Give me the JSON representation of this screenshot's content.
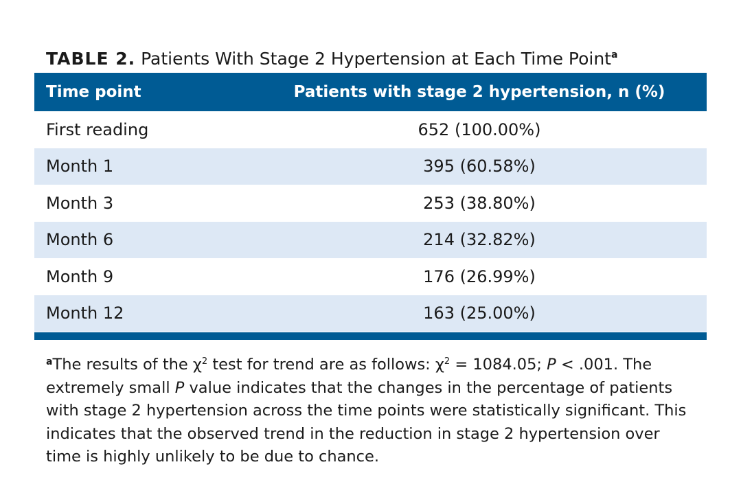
{
  "title": {
    "label": "TABLE 2.",
    "text": "Patients With Stage 2 Hypertension at Each Time Point",
    "footnote_mark": "a"
  },
  "table": {
    "headers": [
      "Time point",
      "Patients with stage 2 hypertension, n (%)"
    ],
    "rows": [
      [
        "First reading",
        "652 (100.00%)"
      ],
      [
        "Month 1",
        "395 (60.58%)"
      ],
      [
        "Month 3",
        "253 (38.80%)"
      ],
      [
        "Month 6",
        "214 (32.82%)"
      ],
      [
        "Month 9",
        "176 (26.99%)"
      ],
      [
        "Month 12",
        "163 (25.00%)"
      ]
    ]
  },
  "footnote": {
    "mark": "a",
    "part1": "The results of the χ",
    "sup1": "2",
    "part2": " test for trend are as follows: χ",
    "sup2": "2",
    "part3": " = 1084.05; ",
    "p1": "P",
    "part4": " < .001. The extremely small ",
    "p2": "P",
    "part5": " value indicates that the changes in the percentage of patients with stage 2 hypertension across the time points were statistically significant. This indicates that the observed trend in the reduction in stage 2 hypertension over time is highly unlikely to be due to chance."
  },
  "colors": {
    "header_bg": "#005b94",
    "alt_row_bg": "#dde8f5"
  }
}
